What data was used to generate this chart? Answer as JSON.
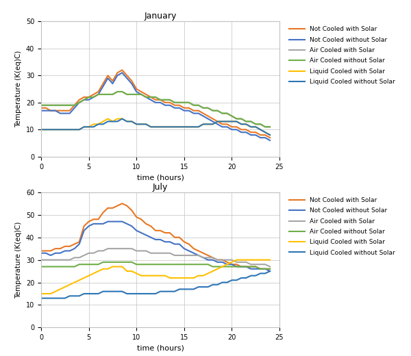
{
  "title_jan": "January",
  "title_jul": "July",
  "xlabel": "time (hours)",
  "ylabel": "Temperature (K(eq)C)",
  "legend_labels": [
    "Not Cooled with Solar",
    "Not Cooled without Solar",
    "Air Cooled with Solar",
    "Air Cooled without Solar",
    "Liquid Cooled with Solar",
    "Liquid Cooled without Solar"
  ],
  "colors": [
    "#E87722",
    "#4472C4",
    "#A6A6A6",
    "#70AD47",
    "#FFC000",
    "#2E75B6"
  ],
  "jan_ylim": [
    0,
    50
  ],
  "jan_yticks": [
    0,
    10,
    20,
    30,
    40,
    50
  ],
  "jul_ylim": [
    0,
    60
  ],
  "jul_yticks": [
    0,
    10,
    20,
    30,
    40,
    50,
    60
  ],
  "xlim": [
    0,
    25
  ],
  "xticks": [
    0,
    5,
    10,
    15,
    20,
    25
  ],
  "jan_time": [
    0,
    0.5,
    1,
    1.5,
    2,
    2.5,
    3,
    3.5,
    4,
    4.5,
    5,
    5.5,
    6,
    6.5,
    7,
    7.5,
    8,
    8.5,
    9,
    9.5,
    10,
    10.5,
    11,
    11.5,
    12,
    12.5,
    13,
    13.5,
    14,
    14.5,
    15,
    15.5,
    16,
    16.5,
    17,
    17.5,
    18,
    18.5,
    19,
    19.5,
    20,
    20.5,
    21,
    21.5,
    22,
    22.5,
    23,
    23.5,
    24
  ],
  "jan_not_cooled_solar": [
    18,
    18,
    17,
    17,
    17,
    17,
    17,
    19,
    21,
    22,
    22,
    23,
    24,
    27,
    30,
    28,
    31,
    32,
    30,
    28,
    25,
    24,
    23,
    22,
    21,
    21,
    20,
    20,
    19,
    19,
    18,
    18,
    17,
    17,
    16,
    15,
    14,
    13,
    12,
    12,
    11,
    11,
    10,
    10,
    9,
    9,
    8,
    8,
    7
  ],
  "jan_not_cooled_no_solar": [
    17,
    17,
    17,
    17,
    16,
    16,
    16,
    18,
    20,
    21,
    21,
    22,
    23,
    26,
    29,
    27,
    30,
    31,
    29,
    27,
    24,
    23,
    22,
    21,
    20,
    20,
    19,
    19,
    18,
    18,
    17,
    17,
    16,
    16,
    15,
    14,
    13,
    12,
    11,
    11,
    10,
    10,
    9,
    9,
    8,
    8,
    7,
    7,
    6
  ],
  "jan_air_solar": [
    19,
    19,
    19,
    19,
    19,
    19,
    19,
    19,
    20,
    21,
    22,
    22,
    23,
    23,
    23,
    23,
    24,
    24,
    23,
    23,
    23,
    23,
    22,
    22,
    22,
    21,
    21,
    21,
    20,
    20,
    20,
    20,
    19,
    19,
    18,
    18,
    17,
    17,
    16,
    16,
    15,
    14,
    14,
    13,
    13,
    12,
    12,
    11,
    11
  ],
  "jan_air_no_solar": [
    19,
    19,
    19,
    19,
    19,
    19,
    19,
    19,
    20,
    21,
    22,
    22,
    23,
    23,
    23,
    23,
    24,
    24,
    23,
    23,
    23,
    23,
    22,
    22,
    22,
    21,
    21,
    21,
    20,
    20,
    20,
    20,
    19,
    19,
    18,
    18,
    17,
    17,
    16,
    16,
    15,
    14,
    14,
    13,
    13,
    12,
    12,
    11,
    11
  ],
  "jan_liquid_solar": [
    10,
    10,
    10,
    10,
    10,
    10,
    10,
    10,
    10,
    11,
    11,
    12,
    12,
    13,
    14,
    13,
    14,
    14,
    13,
    13,
    12,
    12,
    12,
    11,
    11,
    11,
    11,
    11,
    11,
    11,
    11,
    11,
    11,
    11,
    12,
    12,
    12,
    13,
    13,
    13,
    13,
    13,
    12,
    12,
    11,
    11,
    10,
    9,
    8
  ],
  "jan_liquid_no_solar": [
    10,
    10,
    10,
    10,
    10,
    10,
    10,
    10,
    10,
    11,
    11,
    11,
    12,
    12,
    13,
    13,
    13,
    14,
    13,
    13,
    12,
    12,
    12,
    11,
    11,
    11,
    11,
    11,
    11,
    11,
    11,
    11,
    11,
    11,
    12,
    12,
    12,
    13,
    13,
    13,
    13,
    13,
    12,
    12,
    11,
    11,
    10,
    9,
    8
  ],
  "jul_time": [
    0,
    0.5,
    1,
    1.5,
    2,
    2.5,
    3,
    3.5,
    4,
    4.5,
    5,
    5.5,
    6,
    6.5,
    7,
    7.5,
    8,
    8.5,
    9,
    9.5,
    10,
    10.5,
    11,
    11.5,
    12,
    12.5,
    13,
    13.5,
    14,
    14.5,
    15,
    15.5,
    16,
    16.5,
    17,
    17.5,
    18,
    18.5,
    19,
    19.5,
    20,
    20.5,
    21,
    21.5,
    22,
    22.5,
    23,
    23.5,
    24
  ],
  "jul_not_cooled_solar": [
    34,
    34,
    34,
    35,
    35,
    36,
    36,
    37,
    38,
    45,
    47,
    48,
    48,
    51,
    53,
    53,
    54,
    55,
    54,
    52,
    49,
    48,
    46,
    45,
    43,
    43,
    42,
    42,
    40,
    40,
    38,
    37,
    35,
    34,
    33,
    32,
    31,
    30,
    30,
    29,
    28,
    28,
    27,
    27,
    27,
    27,
    26,
    26,
    26
  ],
  "jul_not_cooled_no_solar": [
    33,
    33,
    32,
    33,
    33,
    34,
    34,
    35,
    37,
    43,
    45,
    46,
    46,
    46,
    47,
    47,
    47,
    47,
    46,
    45,
    43,
    42,
    41,
    40,
    39,
    39,
    38,
    38,
    37,
    37,
    35,
    34,
    33,
    32,
    31,
    30,
    30,
    29,
    29,
    28,
    28,
    27,
    27,
    27,
    26,
    26,
    26,
    26,
    25
  ],
  "jul_air_solar": [
    30,
    30,
    30,
    30,
    30,
    30,
    30,
    31,
    31,
    32,
    33,
    33,
    34,
    34,
    35,
    35,
    35,
    35,
    35,
    35,
    34,
    34,
    34,
    33,
    33,
    33,
    33,
    33,
    32,
    32,
    32,
    32,
    32,
    32,
    31,
    31,
    31,
    30,
    30,
    30,
    30,
    29,
    29,
    29,
    28,
    28,
    28,
    28,
    27
  ],
  "jul_air_no_solar": [
    27,
    27,
    27,
    27,
    27,
    27,
    27,
    27,
    28,
    28,
    28,
    28,
    28,
    29,
    29,
    29,
    29,
    29,
    29,
    29,
    28,
    28,
    28,
    28,
    28,
    28,
    28,
    28,
    28,
    28,
    28,
    28,
    28,
    28,
    28,
    28,
    27,
    27,
    27,
    27,
    27,
    27,
    27,
    27,
    27,
    27,
    26,
    26,
    26
  ],
  "jul_liquid_solar": [
    15,
    15,
    15,
    16,
    17,
    18,
    19,
    20,
    21,
    22,
    23,
    24,
    25,
    26,
    26,
    27,
    27,
    27,
    25,
    25,
    24,
    23,
    23,
    23,
    23,
    23,
    23,
    22,
    22,
    22,
    22,
    22,
    22,
    23,
    23,
    24,
    25,
    26,
    27,
    28,
    29,
    30,
    30,
    30,
    30,
    30,
    30,
    30,
    30
  ],
  "jul_liquid_no_solar": [
    13,
    13,
    13,
    13,
    13,
    13,
    14,
    14,
    14,
    15,
    15,
    15,
    15,
    16,
    16,
    16,
    16,
    16,
    15,
    15,
    15,
    15,
    15,
    15,
    15,
    16,
    16,
    16,
    16,
    17,
    17,
    17,
    17,
    18,
    18,
    18,
    19,
    19,
    20,
    20,
    21,
    21,
    22,
    22,
    23,
    23,
    24,
    24,
    25
  ]
}
